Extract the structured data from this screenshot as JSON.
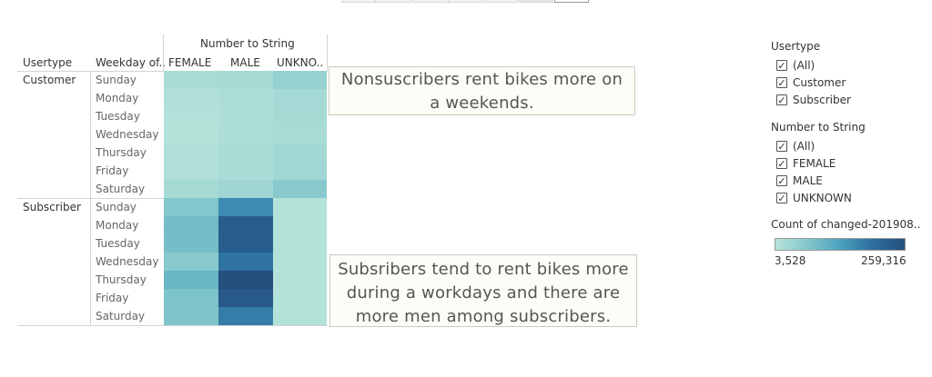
{
  "chart_data": {
    "type": "heatmap",
    "column_group_title": "Number to String",
    "row_header_titles": [
      "Usertype",
      "Weekday of.."
    ],
    "columns": [
      "FEMALE",
      "MALE",
      "UNKNO.."
    ],
    "row_groups": [
      {
        "label": "Customer",
        "rows": [
          {
            "label": "Sunday",
            "values": [
              22000,
              25000,
              45000
            ]
          },
          {
            "label": "Monday",
            "values": [
              12000,
              18000,
              28000
            ]
          },
          {
            "label": "Tuesday",
            "values": [
              10000,
              17000,
              26000
            ]
          },
          {
            "label": "Wednesday",
            "values": [
              9000,
              15000,
              21000
            ]
          },
          {
            "label": "Thursday",
            "values": [
              12000,
              20000,
              30000
            ]
          },
          {
            "label": "Friday",
            "values": [
              14000,
              22000,
              32000
            ]
          },
          {
            "label": "Saturday",
            "values": [
              26000,
              34000,
              62000
            ]
          }
        ]
      },
      {
        "label": "Subscriber",
        "rows": [
          {
            "label": "Sunday",
            "values": [
              68000,
              160000,
              9000
            ]
          },
          {
            "label": "Monday",
            "values": [
              85000,
              230000,
              9000
            ]
          },
          {
            "label": "Tuesday",
            "values": [
              84000,
              232000,
              9000
            ]
          },
          {
            "label": "Wednesday",
            "values": [
              62000,
              190000,
              8000
            ]
          },
          {
            "label": "Thursday",
            "values": [
              97000,
              259316,
              9000
            ]
          },
          {
            "label": "Friday",
            "values": [
              75000,
              238000,
              9000
            ]
          },
          {
            "label": "Saturday",
            "values": [
              72000,
              178000,
              9000
            ]
          }
        ]
      }
    ],
    "color_min": 3528,
    "color_max": 259316,
    "color_min_label": "3,528",
    "color_max_label": "259,316",
    "color_scale": [
      "#b8e4da",
      "#83c7cc",
      "#4ba1bd",
      "#2c6fa0",
      "#24507d"
    ]
  },
  "annotations": [
    "Nonsuscribers rent bikes more on a weekends.",
    "Subsribers tend to rent bikes more during a workdays and there are more men among subscribers."
  ],
  "filters": [
    {
      "title": "Usertype",
      "options": [
        "(All)",
        "Customer",
        "Subscriber"
      ]
    },
    {
      "title": "Number to String",
      "options": [
        "(All)",
        "FEMALE",
        "MALE",
        "UNKNOWN"
      ]
    }
  ],
  "legend": {
    "title": "Count of changed-201908.."
  },
  "check_glyph": "✓"
}
